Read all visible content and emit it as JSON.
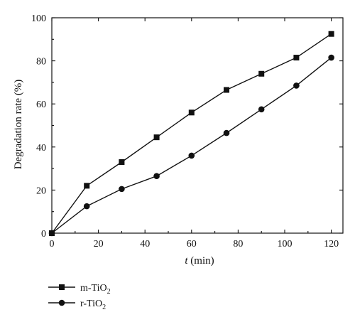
{
  "chart_data": {
    "type": "line",
    "x": [
      0,
      15,
      30,
      45,
      60,
      75,
      90,
      105,
      120
    ],
    "series": [
      {
        "name": "m-TiO2",
        "name_main": "m-TiO",
        "name_sub": "2",
        "marker": "square",
        "values": [
          0,
          22,
          33,
          44.5,
          56,
          66.5,
          74,
          81.5,
          92.5
        ]
      },
      {
        "name": "r-TiO2",
        "name_main": "r-TiO",
        "name_sub": "2",
        "marker": "circle",
        "values": [
          0,
          12.5,
          20.5,
          26.5,
          36,
          46.5,
          57.5,
          68.5,
          81.5
        ]
      }
    ],
    "xlabel_italic": "t",
    "xlabel_rest": " (min)",
    "ylabel": "Degradation rate (%)",
    "xlim": [
      0,
      125
    ],
    "ylim": [
      0,
      100
    ],
    "xticks": [
      0,
      20,
      40,
      60,
      80,
      100,
      120
    ],
    "yticks": [
      0,
      20,
      40,
      60,
      80,
      100
    ],
    "grid": false,
    "legend_placement": "below-left",
    "line_color": "#111111"
  }
}
